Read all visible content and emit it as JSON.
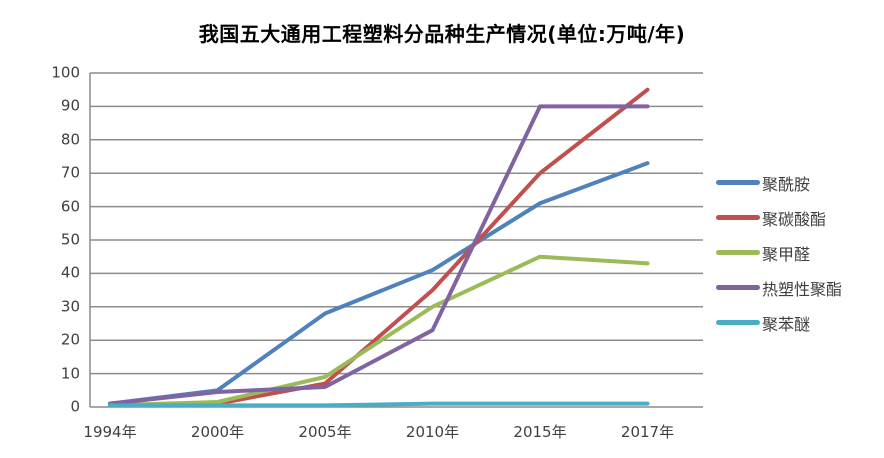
{
  "title": "我国五大通用工程塑料分品种生产情况(单位:万吨/年)",
  "chart_data": {
    "type": "line",
    "title": "我国五大通用工程塑料分品种生产情况(单位:万吨/年)",
    "categories": [
      "1994年",
      "2000年",
      "2005年",
      "2010年",
      "2015年",
      "2017年"
    ],
    "series": [
      {
        "id": "polyamide",
        "name": "聚酰胺",
        "color": "#4F81BD",
        "values": [
          1,
          5,
          28,
          41,
          61,
          73
        ]
      },
      {
        "id": "polycarbonate",
        "name": "聚碳酸酯",
        "color": "#C0504D",
        "values": [
          0.5,
          1,
          7,
          35,
          70,
          95
        ]
      },
      {
        "id": "polyoxymethylene",
        "name": "聚甲醛",
        "color": "#9BBB59",
        "values": [
          0.5,
          1.5,
          9,
          30,
          45,
          43
        ]
      },
      {
        "id": "thermoplastic-polyester",
        "name": "热塑性聚酯",
        "color": "#8064A2",
        "values": [
          1,
          4.5,
          6,
          23,
          90,
          90
        ]
      },
      {
        "id": "polyphenylene-ether",
        "name": "聚苯醚",
        "color": "#4BACC6",
        "values": [
          0.5,
          0.5,
          0.5,
          1,
          1,
          1
        ]
      }
    ],
    "ylim": [
      0,
      100
    ],
    "y_tick_step": 10,
    "y_ticks": [
      0,
      10,
      20,
      30,
      40,
      50,
      60,
      70,
      80,
      90,
      100
    ],
    "xlabel": "",
    "ylabel": "",
    "grid": "horizontal",
    "legend_position": "right",
    "colors": {
      "gridline": "#8C8C8C",
      "axis_line": "#8C8C8C",
      "tick_text": "#404040",
      "title_text": "#000000",
      "background": "#FFFFFF"
    }
  }
}
